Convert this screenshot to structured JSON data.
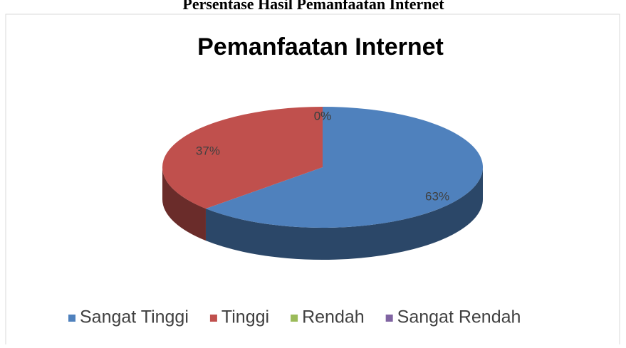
{
  "page_header": "Persentase Hasil Pemanfaatan Internet",
  "chart_data": {
    "type": "pie3d",
    "title": "Pemanfaatan Internet",
    "categories": [
      "Sangat Tinggi",
      "Tinggi",
      "Rendah",
      "Sangat Rendah"
    ],
    "values": [
      63,
      37,
      0,
      0
    ],
    "value_labels": [
      "63%",
      "37%",
      "0%",
      "0%"
    ],
    "colors": [
      "#4f81bd",
      "#c0504d",
      "#9bbb59",
      "#8064a2"
    ],
    "legend": "bottom"
  }
}
